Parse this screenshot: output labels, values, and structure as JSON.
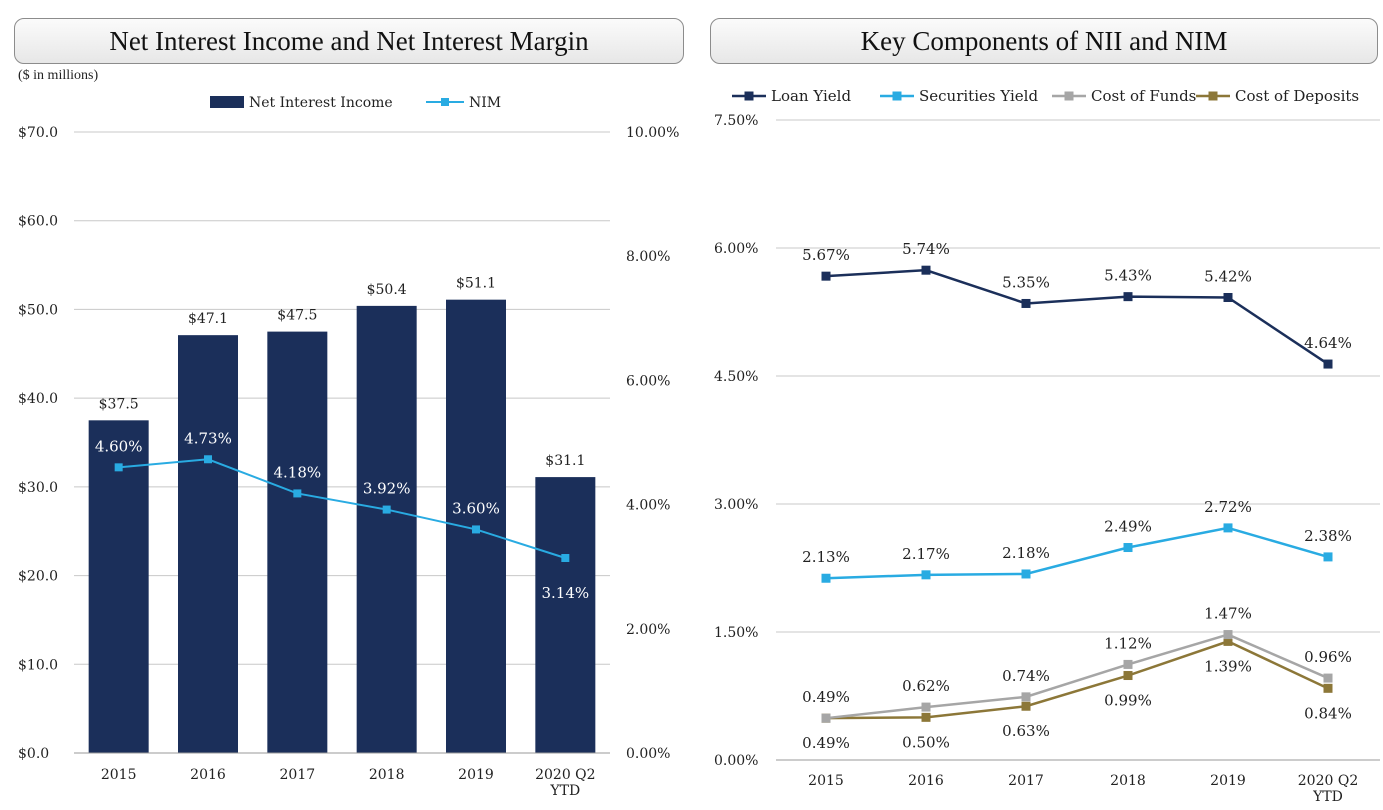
{
  "left_panel": {
    "title": "Net Interest Income and Net Interest Margin",
    "unit_note": "($ in millions)"
  },
  "right_panel": {
    "title": "Key Components of NII and NIM"
  },
  "colors": {
    "navy": "#1b2f5a",
    "light_blue": "#29abe2",
    "gray": "#a6a6a6",
    "gold": "#8c7738",
    "grid": "#c8c8c8",
    "text": "#222222"
  },
  "chart_data": [
    {
      "type": "bar",
      "title": "Net Interest Income and Net Interest Margin",
      "categories": [
        "2015",
        "2016",
        "2017",
        "2018",
        "2019",
        "2020 Q2|YTD"
      ],
      "series": [
        {
          "name": "Net Interest Income",
          "kind": "bar",
          "axis": "left",
          "values": [
            37.5,
            47.1,
            47.5,
            50.4,
            51.1,
            31.1
          ],
          "labels": [
            "$37.5",
            "$47.1",
            "$47.5",
            "$50.4",
            "$51.1",
            "$31.1"
          ]
        },
        {
          "name": "NIM",
          "kind": "line",
          "axis": "right",
          "values": [
            4.6,
            4.73,
            4.18,
            3.92,
            3.6,
            3.14
          ],
          "labels": [
            "4.60%",
            "4.73%",
            "4.18%",
            "3.92%",
            "3.60%",
            "3.14%"
          ]
        }
      ],
      "y_left": {
        "ylim": [
          0,
          70
        ],
        "ticks": [
          0,
          10,
          20,
          30,
          40,
          50,
          60,
          70
        ],
        "tick_labels": [
          "$0.0",
          "$10.0",
          "$20.0",
          "$30.0",
          "$40.0",
          "$50.0",
          "$60.0",
          "$70.0"
        ]
      },
      "y_right": {
        "ylim": [
          0,
          10
        ],
        "ticks": [
          0,
          2,
          4,
          6,
          8,
          10
        ],
        "tick_labels": [
          "0.00%",
          "2.00%",
          "4.00%",
          "6.00%",
          "8.00%",
          "10.00%"
        ]
      },
      "legend": "top-center",
      "grid": true
    },
    {
      "type": "line",
      "title": "Key Components of NII and NIM",
      "categories": [
        "2015",
        "2016",
        "2017",
        "2018",
        "2019",
        "2020 Q2|YTD"
      ],
      "series": [
        {
          "name": "Loan Yield",
          "values": [
            5.67,
            5.74,
            5.35,
            5.43,
            5.42,
            4.64
          ],
          "labels": [
            "5.67%",
            "5.74%",
            "5.35%",
            "5.43%",
            "5.42%",
            "4.64%"
          ]
        },
        {
          "name": "Securities Yield",
          "values": [
            2.13,
            2.17,
            2.18,
            2.49,
            2.72,
            2.38
          ],
          "labels": [
            "2.13%",
            "2.17%",
            "2.18%",
            "2.49%",
            "2.72%",
            "2.38%"
          ]
        },
        {
          "name": "Cost of Funds",
          "values": [
            0.49,
            0.62,
            0.74,
            1.12,
            1.47,
            0.96
          ],
          "labels": [
            "0.49%",
            "0.62%",
            "0.74%",
            "1.12%",
            "1.47%",
            "0.96%"
          ]
        },
        {
          "name": "Cost of Deposits",
          "values": [
            0.49,
            0.5,
            0.63,
            0.99,
            1.39,
            0.84
          ],
          "labels": [
            "0.49%",
            "0.50%",
            "0.63%",
            "0.99%",
            "1.39%",
            "0.84%"
          ]
        }
      ],
      "y": {
        "ylim": [
          0,
          7.5
        ],
        "ticks": [
          0,
          1.5,
          3.0,
          4.5,
          6.0,
          7.5
        ],
        "tick_labels": [
          "0.00%",
          "1.50%",
          "3.00%",
          "4.50%",
          "6.00%",
          "7.50%"
        ]
      },
      "legend": "top",
      "grid": true
    }
  ]
}
